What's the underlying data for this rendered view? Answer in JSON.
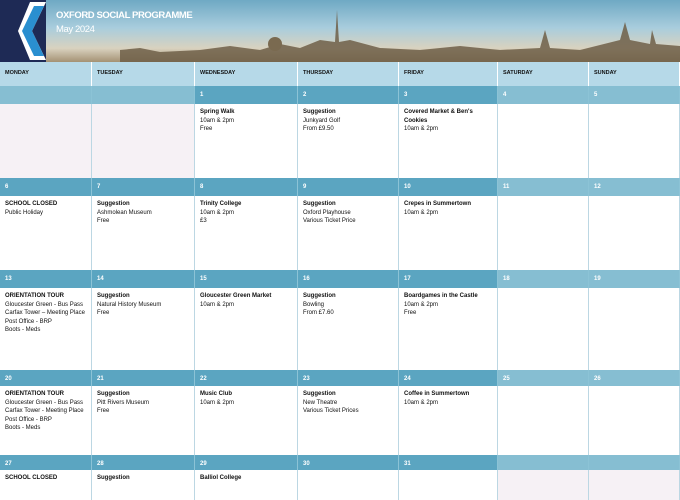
{
  "header": {
    "title": "OXFORD SOCIAL PROGRAMME",
    "subtitle": "May 2024"
  },
  "days": [
    "MONDAY",
    "TUESDAY",
    "WEDNESDAY",
    "THURSDAY",
    "FRIDAY",
    "SATURDAY",
    "SUNDAY"
  ],
  "weeks": [
    [
      {
        "date": null
      },
      {
        "date": null
      },
      {
        "date": "1",
        "title": "Spring Walk",
        "lines": [
          "10am & 2pm",
          "Free"
        ]
      },
      {
        "date": "2",
        "title": "Suggestion",
        "lines": [
          "Junkyard Golf",
          "From £9.50"
        ]
      },
      {
        "date": "3",
        "title": "Covered Market & Ben's Cookies",
        "lines": [
          "10am & 2pm"
        ]
      },
      {
        "date": "4"
      },
      {
        "date": "5"
      }
    ],
    [
      {
        "date": "6",
        "title": "SCHOOL CLOSED",
        "lines": [
          "Public Holiday"
        ]
      },
      {
        "date": "7",
        "title": "Suggestion",
        "lines": [
          "Ashmolean Museum",
          "Free"
        ]
      },
      {
        "date": "8",
        "title": "Trinity College",
        "lines": [
          "10am & 2pm",
          "£3"
        ]
      },
      {
        "date": "9",
        "title": "Suggestion",
        "lines": [
          "Oxford Playhouse",
          "Various Ticket Price"
        ]
      },
      {
        "date": "10",
        "title": "Crepes in Summertown",
        "lines": [
          "10am & 2pm"
        ]
      },
      {
        "date": "11"
      },
      {
        "date": "12"
      }
    ],
    [
      {
        "date": "13",
        "title": "ORIENTATION TOUR",
        "lines": [
          "Gloucester Green - Bus Pass",
          "Carfax Tower – Meeting Place",
          "Post Office - BRP",
          "Boots - Meds"
        ]
      },
      {
        "date": "14",
        "title": "Suggestion",
        "lines": [
          "Natural History Museum",
          "Free"
        ]
      },
      {
        "date": "15",
        "title": "Gloucester Green Market",
        "lines": [
          "10am & 2pm"
        ]
      },
      {
        "date": "16",
        "title": "Suggestion",
        "lines": [
          "Bowling",
          "From £7.60"
        ]
      },
      {
        "date": "17",
        "title": "Boardgames in the Castle",
        "lines": [
          "10am & 2pm",
          "Free"
        ]
      },
      {
        "date": "18"
      },
      {
        "date": "19"
      }
    ],
    [
      {
        "date": "20",
        "title": "ORIENTATION TOUR",
        "lines": [
          "Gloucester Green - Bus Pass",
          "Carfax Tower - Meeting Place",
          "Post Office - BRP",
          "Boots - Meds"
        ]
      },
      {
        "date": "21",
        "title": "Suggestion",
        "lines": [
          "Pitt Rivers Museum",
          "Free"
        ]
      },
      {
        "date": "22",
        "title": "Music Club",
        "lines": [
          "10am & 2pm"
        ]
      },
      {
        "date": "23",
        "title": "Suggestion",
        "lines": [
          "New Theatre",
          "Various Ticket Prices"
        ]
      },
      {
        "date": "24",
        "title": "Coffee in Summertown",
        "lines": [
          "10am & 2pm"
        ]
      },
      {
        "date": "25"
      },
      {
        "date": "26"
      }
    ],
    [
      {
        "date": "27",
        "title": "SCHOOL CLOSED"
      },
      {
        "date": "28",
        "title": "Suggestion"
      },
      {
        "date": "29",
        "title": "Balliol College"
      },
      {
        "date": "30"
      },
      {
        "date": "31"
      },
      {
        "date": null
      },
      {
        "date": null
      }
    ]
  ]
}
